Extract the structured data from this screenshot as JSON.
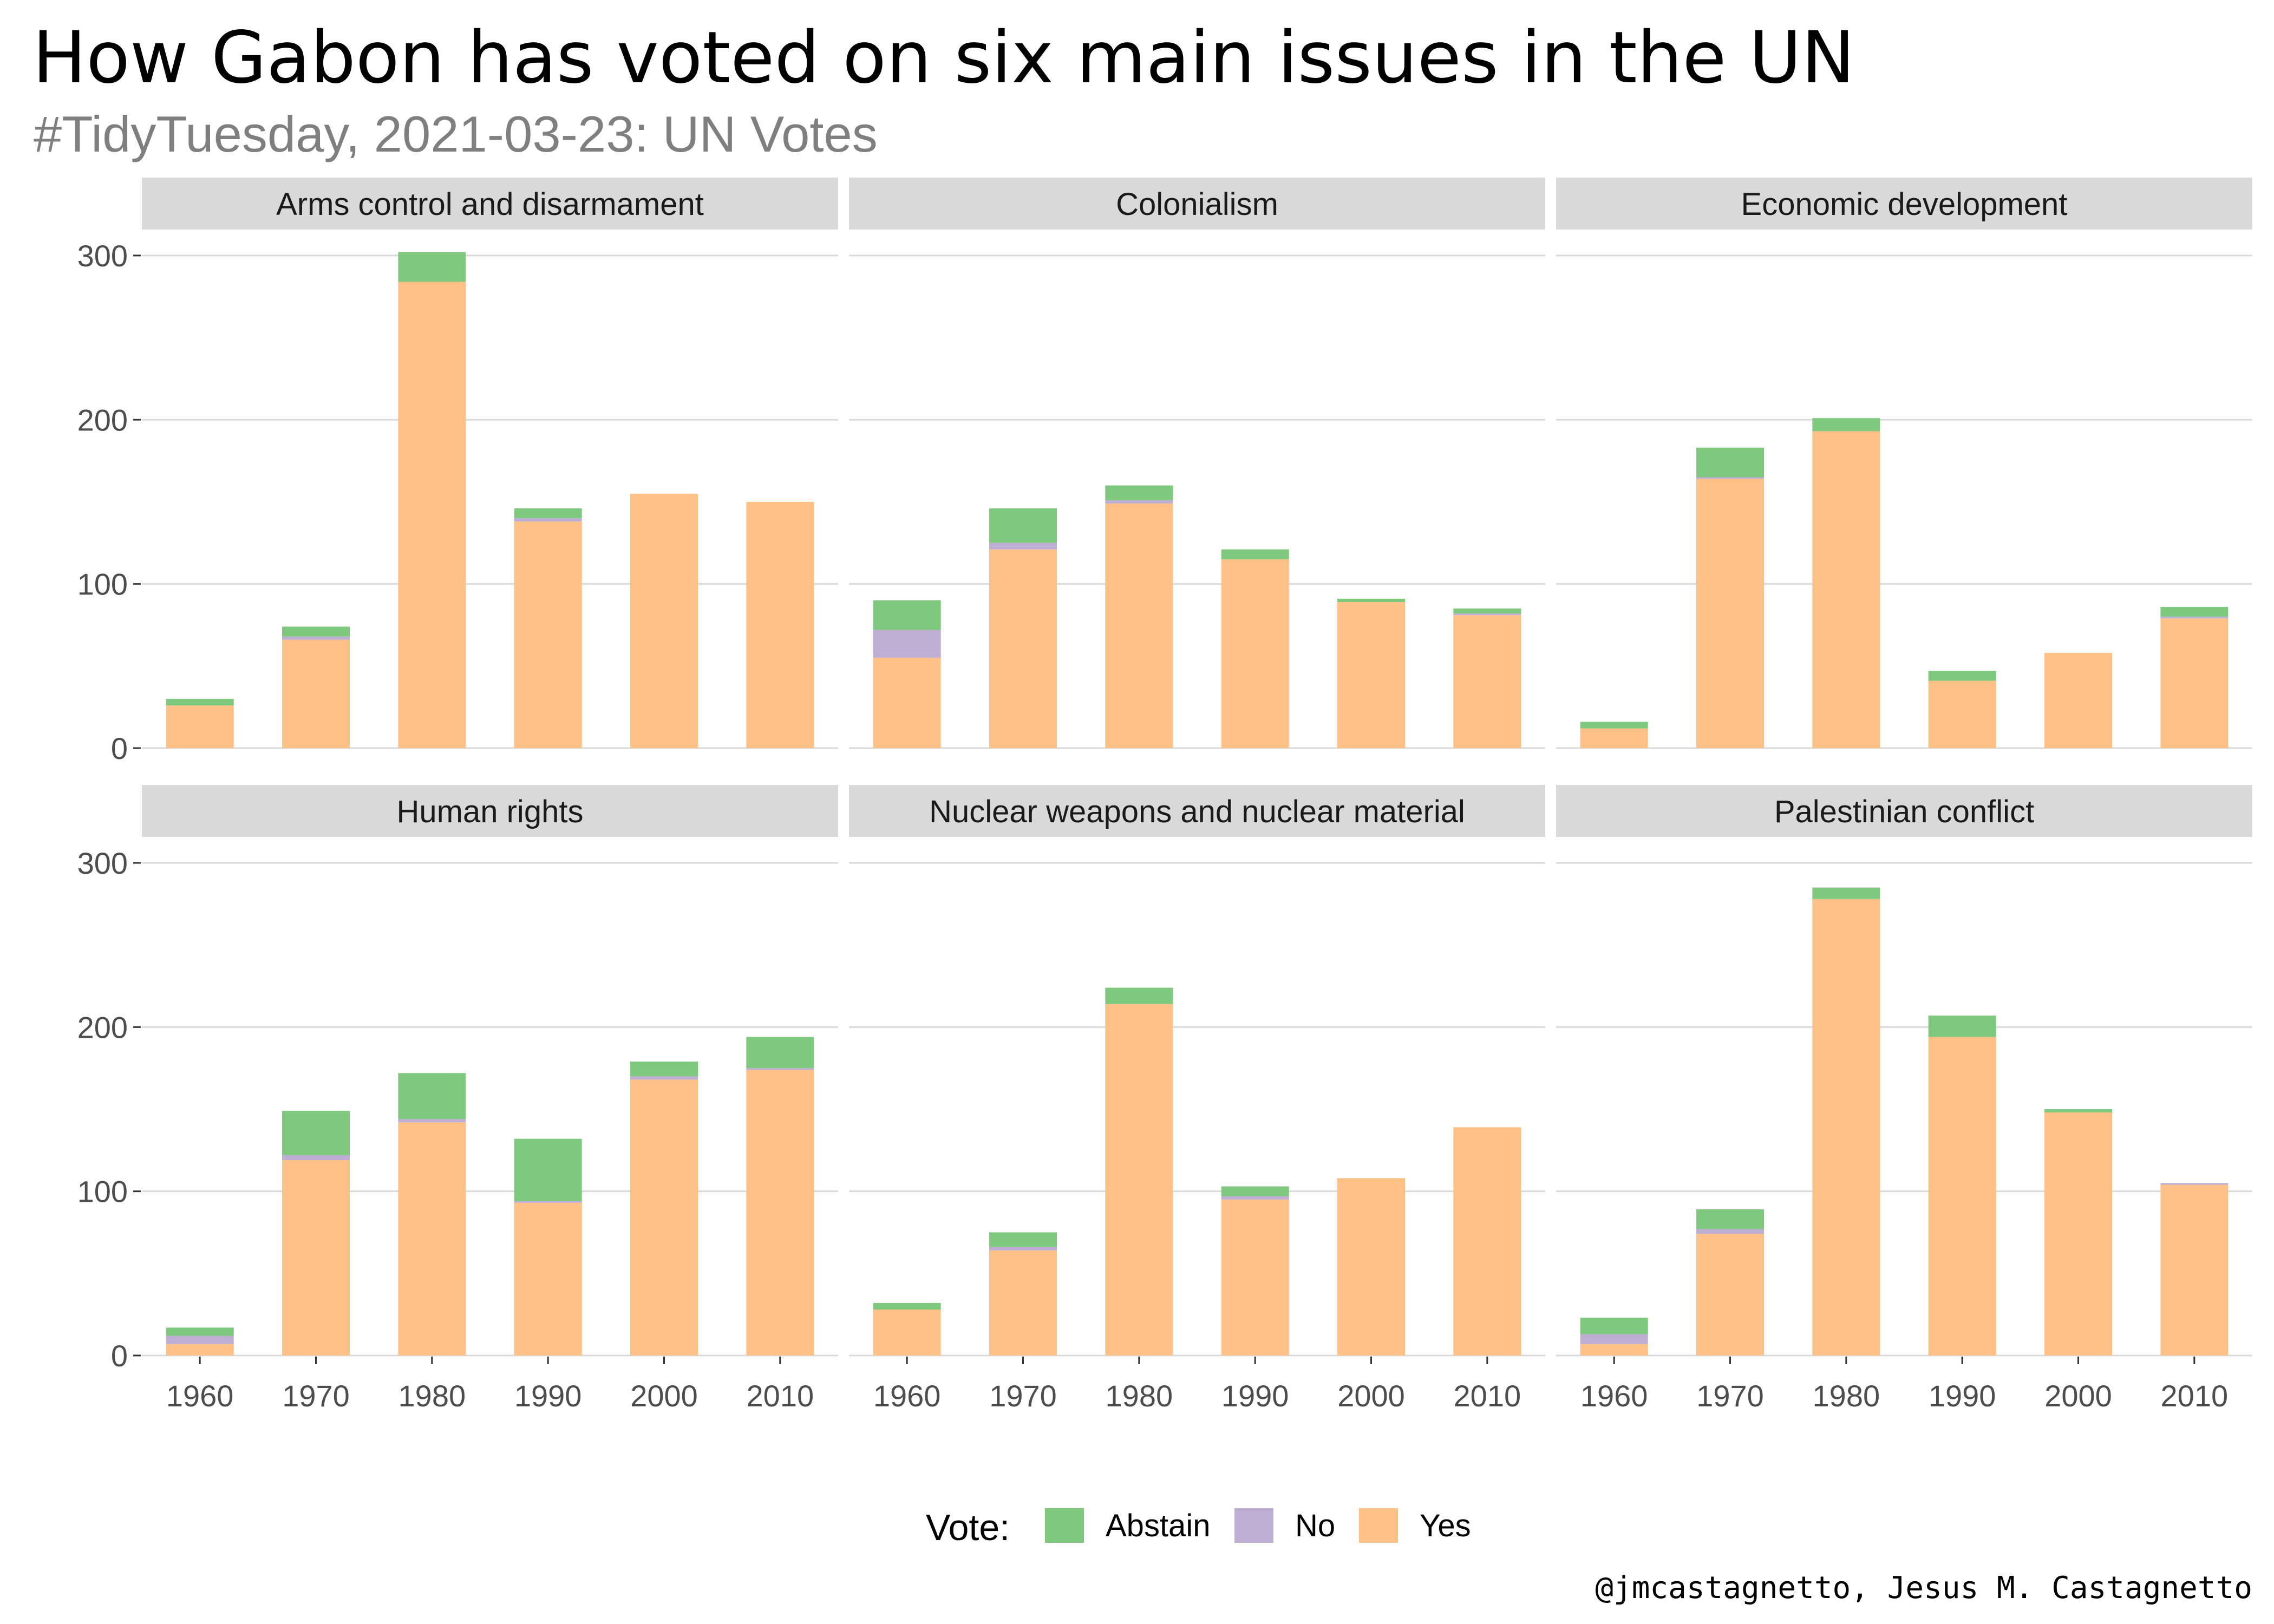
{
  "title": "How Gabon has voted on six main issues in the UN",
  "subtitle": "#TidyTuesday, 2021-03-23: UN Votes",
  "caption": "@jmcastagnetto, Jesus M. Castagnetto",
  "legend": {
    "title": "Vote:",
    "items": [
      {
        "label": "Abstain",
        "color": "#7fc97f"
      },
      {
        "label": "No",
        "color": "#beaed4"
      },
      {
        "label": "Yes",
        "color": "#fdc086"
      }
    ]
  },
  "chart_data": {
    "type": "bar",
    "stacked": true,
    "facets": 6,
    "categories": [
      "1960",
      "1970",
      "1980",
      "1990",
      "2000",
      "2010"
    ],
    "ylim": [
      0,
      300
    ],
    "yticks": [
      0,
      100,
      200,
      300
    ],
    "grid": true,
    "legend_position": "bottom",
    "series_order": [
      "Yes",
      "No",
      "Abstain"
    ],
    "colors": {
      "Abstain": "#7fc97f",
      "No": "#beaed4",
      "Yes": "#fdc086"
    },
    "panels": [
      {
        "title": "Arms control and disarmament",
        "series": [
          {
            "name": "Yes",
            "values": [
              26,
              66,
              284,
              138,
              155,
              150
            ]
          },
          {
            "name": "No",
            "values": [
              0,
              2,
              0,
              2,
              0,
              0
            ]
          },
          {
            "name": "Abstain",
            "values": [
              4,
              6,
              18,
              6,
              0,
              0
            ]
          }
        ]
      },
      {
        "title": "Colonialism",
        "series": [
          {
            "name": "Yes",
            "values": [
              55,
              121,
              149,
              115,
              89,
              81
            ]
          },
          {
            "name": "No",
            "values": [
              17,
              4,
              2,
              0,
              0,
              1
            ]
          },
          {
            "name": "Abstain",
            "values": [
              18,
              21,
              9,
              6,
              2,
              3
            ]
          }
        ]
      },
      {
        "title": "Economic development",
        "series": [
          {
            "name": "Yes",
            "values": [
              12,
              164,
              193,
              41,
              58,
              79
            ]
          },
          {
            "name": "No",
            "values": [
              0,
              1,
              0,
              0,
              0,
              1
            ]
          },
          {
            "name": "Abstain",
            "values": [
              4,
              18,
              8,
              6,
              0,
              6
            ]
          }
        ]
      },
      {
        "title": "Human rights",
        "series": [
          {
            "name": "Yes",
            "values": [
              7,
              119,
              142,
              93,
              168,
              174
            ]
          },
          {
            "name": "No",
            "values": [
              5,
              3,
              2,
              1,
              2,
              1
            ]
          },
          {
            "name": "Abstain",
            "values": [
              5,
              27,
              28,
              38,
              9,
              19
            ]
          }
        ]
      },
      {
        "title": "Nuclear weapons and nuclear material",
        "series": [
          {
            "name": "Yes",
            "values": [
              28,
              64,
              214,
              95,
              108,
              139
            ]
          },
          {
            "name": "No",
            "values": [
              0,
              2,
              0,
              2,
              0,
              0
            ]
          },
          {
            "name": "Abstain",
            "values": [
              4,
              9,
              10,
              6,
              0,
              0
            ]
          }
        ]
      },
      {
        "title": "Palestinian conflict",
        "series": [
          {
            "name": "Yes",
            "values": [
              7,
              74,
              278,
              194,
              148,
              104
            ]
          },
          {
            "name": "No",
            "values": [
              6,
              3,
              0,
              0,
              0,
              1
            ]
          },
          {
            "name": "Abstain",
            "values": [
              10,
              12,
              7,
              13,
              2,
              0
            ]
          }
        ]
      }
    ]
  }
}
